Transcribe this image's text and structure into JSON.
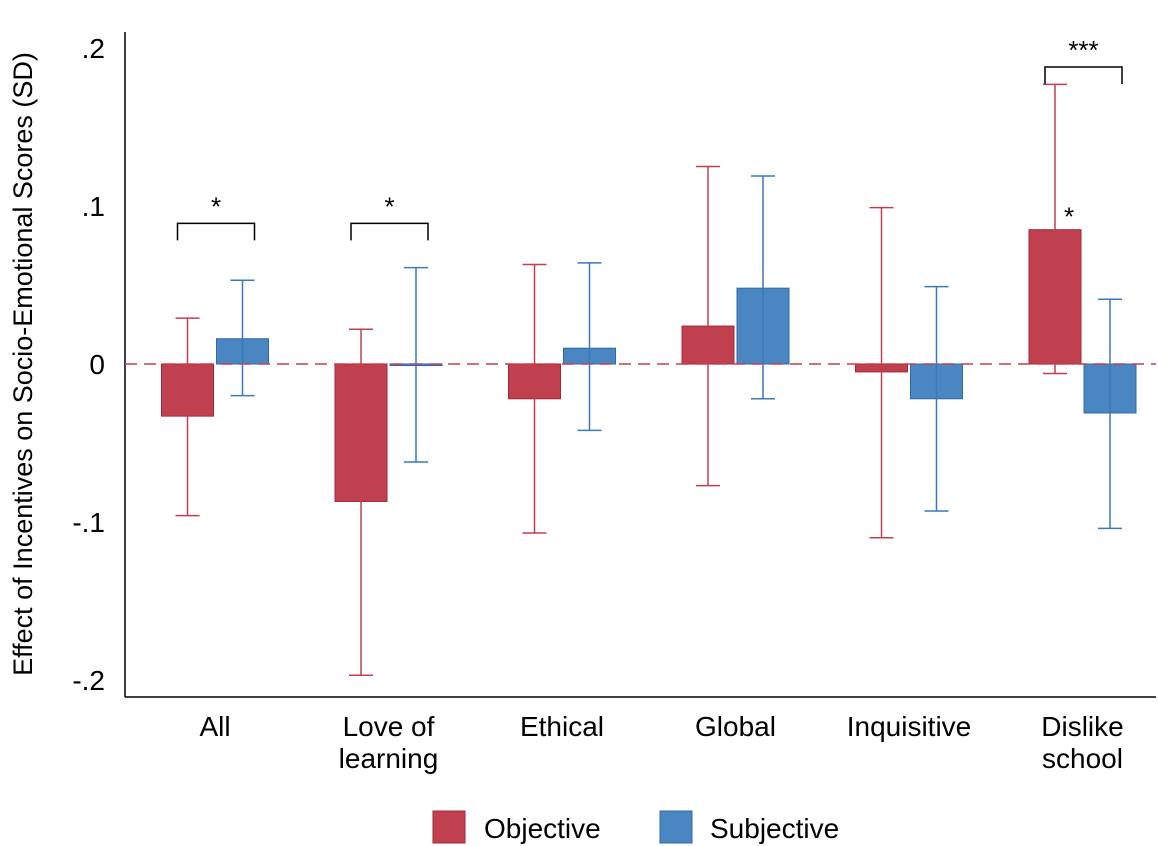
{
  "chart_data": {
    "type": "bar",
    "ylabel": "Effect of Incentives on Socio-Emotional Scores (SD)",
    "xlabel": "",
    "ylim": [
      -0.21,
      0.21
    ],
    "yticks": [
      {
        "value": 0.2,
        "label": ".2"
      },
      {
        "value": 0.1,
        "label": ".1"
      },
      {
        "value": 0,
        "label": "0"
      },
      {
        "value": -0.1,
        "label": "-.1"
      },
      {
        "value": -0.2,
        "label": "-.2"
      }
    ],
    "categories": [
      {
        "lines": [
          "All"
        ]
      },
      {
        "lines": [
          "Love of",
          "learning"
        ]
      },
      {
        "lines": [
          "Ethical"
        ]
      },
      {
        "lines": [
          "Global"
        ]
      },
      {
        "lines": [
          "Inquisitive"
        ]
      },
      {
        "lines": [
          "Dislike",
          "school"
        ]
      }
    ],
    "series": [
      {
        "name": "Objective",
        "color": "#c0404f",
        "values": [
          -0.033,
          -0.087,
          -0.022,
          0.024,
          -0.005,
          0.085
        ],
        "ci_low": [
          -0.096,
          -0.197,
          -0.107,
          -0.077,
          -0.11,
          -0.006
        ],
        "ci_high": [
          0.029,
          0.022,
          0.063,
          0.125,
          0.099,
          0.177
        ]
      },
      {
        "name": "Subjective",
        "color": "#4a87c2",
        "values": [
          0.016,
          -0.001,
          0.01,
          0.048,
          -0.022,
          -0.031
        ],
        "ci_low": [
          -0.02,
          -0.062,
          -0.042,
          -0.022,
          -0.093,
          -0.104
        ],
        "ci_high": [
          0.053,
          0.061,
          0.064,
          0.119,
          0.049,
          0.041
        ]
      }
    ],
    "reference_line": {
      "value": 0,
      "style": "dashed",
      "color": "#c0404f"
    },
    "difference_brackets": [
      {
        "category_index": 0,
        "label": "*",
        "level": 0.089
      },
      {
        "category_index": 1,
        "label": "*",
        "level": 0.089
      },
      {
        "category_index": 5,
        "label": "***",
        "level": 0.188
      }
    ],
    "bar_annotations": [
      {
        "category_index": 5,
        "series_index": 0,
        "label": "*"
      }
    ],
    "legend": {
      "placement": "bottom-center"
    },
    "grid": false
  }
}
